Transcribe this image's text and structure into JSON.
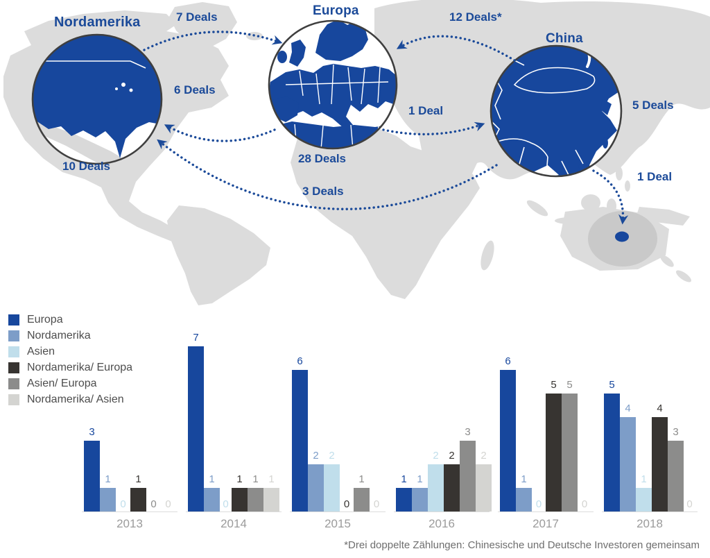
{
  "map": {
    "regions": [
      {
        "id": "nordamerika",
        "label": "Nordamerika",
        "deals_label": "10 Deals"
      },
      {
        "id": "europa",
        "label": "Europa",
        "deals_label": "28 Deals"
      },
      {
        "id": "china",
        "label": "China",
        "deals_label": "5 Deals"
      }
    ],
    "flows": [
      {
        "from": "nordamerika",
        "to": "europa",
        "label": "7 Deals"
      },
      {
        "from": "europa",
        "to": "nordamerika",
        "label": "6 Deals"
      },
      {
        "from": "china",
        "to": "europa",
        "label": "12 Deals*"
      },
      {
        "from": "europa",
        "to": "china",
        "label": "1 Deal"
      },
      {
        "from": "china",
        "to": "nordamerika",
        "label": "3 Deals"
      },
      {
        "from": "china",
        "to": "australien",
        "label": "1 Deal"
      }
    ]
  },
  "chart_data": {
    "type": "bar",
    "categories": [
      "2013",
      "2014",
      "2015",
      "2016",
      "2017",
      "2018"
    ],
    "series": [
      {
        "name": "Europa",
        "color": "#17479d",
        "values": [
          3,
          7,
          6,
          1,
          6,
          5
        ]
      },
      {
        "name": "Nordamerika",
        "color": "#7d9dc8",
        "values": [
          1,
          1,
          2,
          1,
          1,
          4
        ]
      },
      {
        "name": "Asien",
        "color": "#c0deeb",
        "values": [
          0,
          0,
          2,
          2,
          0,
          1
        ]
      },
      {
        "name": "Nordamerika/ Europa",
        "color": "#373431",
        "values": [
          1,
          1,
          0,
          2,
          5,
          4
        ]
      },
      {
        "name": "Asien/ Europa",
        "color": "#8c8c8b",
        "values": [
          0,
          1,
          1,
          3,
          5,
          3
        ]
      },
      {
        "name": "Nordamerika/ Asien",
        "color": "#d4d4d1",
        "values": [
          0,
          1,
          0,
          2,
          0,
          0
        ]
      }
    ],
    "ylim": [
      0,
      7
    ],
    "grid": false,
    "legend_position": "top-left",
    "value_labels": true
  },
  "footnote": "*Drei doppelte Zählungen: Chinesische und Deutsche Investoren gemeinsam",
  "colors": {
    "accent_blue": "#1b4a99",
    "land_gray": "#dcdcdc",
    "australia_spot_gray": "#c9c9c9",
    "circle_ring": "#3f3f3f",
    "baseline_gray": "#dcdcdc",
    "year_label_gray": "#9b9b9b",
    "footnote_gray": "#6e6e6e"
  }
}
